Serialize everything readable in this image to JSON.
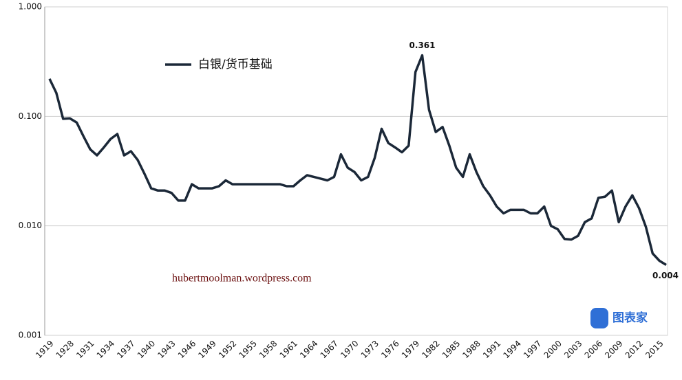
{
  "chart_data": {
    "type": "line",
    "log_scale_y": true,
    "grid": true,
    "legend": "upper-left",
    "categories": [
      "1919",
      null,
      null,
      "1928",
      null,
      null,
      "1931",
      null,
      null,
      "1934",
      null,
      null,
      "1937",
      null,
      null,
      "1940",
      null,
      null,
      "1943",
      null,
      null,
      "1946",
      null,
      null,
      "1949",
      null,
      null,
      "1952",
      null,
      null,
      "1955",
      null,
      null,
      "1958",
      null,
      null,
      "1961",
      null,
      null,
      "1964",
      null,
      null,
      "1967",
      null,
      null,
      "1970",
      null,
      null,
      "1973",
      null,
      null,
      "1976",
      null,
      null,
      "1979",
      null,
      null,
      "1982",
      null,
      null,
      "1985",
      null,
      null,
      "1988",
      null,
      null,
      "1991",
      null,
      null,
      "1994",
      null,
      null,
      "1997",
      null,
      null,
      "2000",
      null,
      null,
      "2003",
      null,
      null,
      "2006",
      null,
      null,
      "2009",
      null,
      null,
      "2012",
      null,
      null,
      "2015",
      null
    ],
    "series": [
      {
        "name": "白银/货币基础",
        "color": "#1b2838",
        "values": [
          0.22,
          0.164,
          0.095,
          0.096,
          0.088,
          0.066,
          0.05,
          0.044,
          0.052,
          0.062,
          0.069,
          0.044,
          0.048,
          0.04,
          0.03,
          0.022,
          0.021,
          0.021,
          0.02,
          0.017,
          0.017,
          0.024,
          0.022,
          0.022,
          0.022,
          0.023,
          0.026,
          0.024,
          0.024,
          0.024,
          0.024,
          0.024,
          0.024,
          0.024,
          0.024,
          0.023,
          0.023,
          0.026,
          0.029,
          0.028,
          0.027,
          0.026,
          0.028,
          0.045,
          0.034,
          0.031,
          0.026,
          0.028,
          0.042,
          0.077,
          0.057,
          0.052,
          0.047,
          0.054,
          0.254,
          0.361,
          0.115,
          0.072,
          0.08,
          0.054,
          0.034,
          0.028,
          0.045,
          0.031,
          0.023,
          0.019,
          0.015,
          0.013,
          0.014,
          0.014,
          0.014,
          0.013,
          0.013,
          0.015,
          0.01,
          0.0093,
          0.0076,
          0.0075,
          0.0081,
          0.0108,
          0.0117,
          0.018,
          0.0185,
          0.021,
          0.0108,
          0.015,
          0.019,
          0.0145,
          0.0098,
          0.0056,
          0.0048,
          0.0044
        ],
        "value_labels": [
          null,
          null,
          null,
          null,
          null,
          null,
          null,
          null,
          null,
          null,
          null,
          null,
          null,
          null,
          null,
          null,
          null,
          null,
          null,
          null,
          null,
          null,
          null,
          null,
          null,
          null,
          null,
          null,
          null,
          null,
          null,
          null,
          null,
          null,
          null,
          null,
          null,
          null,
          null,
          null,
          null,
          null,
          null,
          null,
          null,
          null,
          null,
          null,
          null,
          null,
          null,
          null,
          null,
          null,
          null,
          "0.361",
          null,
          null,
          null,
          null,
          null,
          null,
          null,
          null,
          null,
          null,
          null,
          null,
          null,
          null,
          null,
          null,
          null,
          null,
          null,
          null,
          null,
          null,
          null,
          null,
          null,
          null,
          null,
          null,
          null,
          null,
          null,
          null,
          null,
          null,
          null,
          "0.004"
        ]
      }
    ],
    "ylim": [
      0.001,
      1
    ],
    "yticks": [
      0.001,
      {
        "value": 0.01,
        "label": "0.010"
      },
      {
        "value": 0.1,
        "label": "0.100"
      },
      {
        "value": 1,
        "label": "1.000"
      }
    ],
    "source": "hubertmoolman.wordpress.com",
    "watermark": "图表家"
  }
}
